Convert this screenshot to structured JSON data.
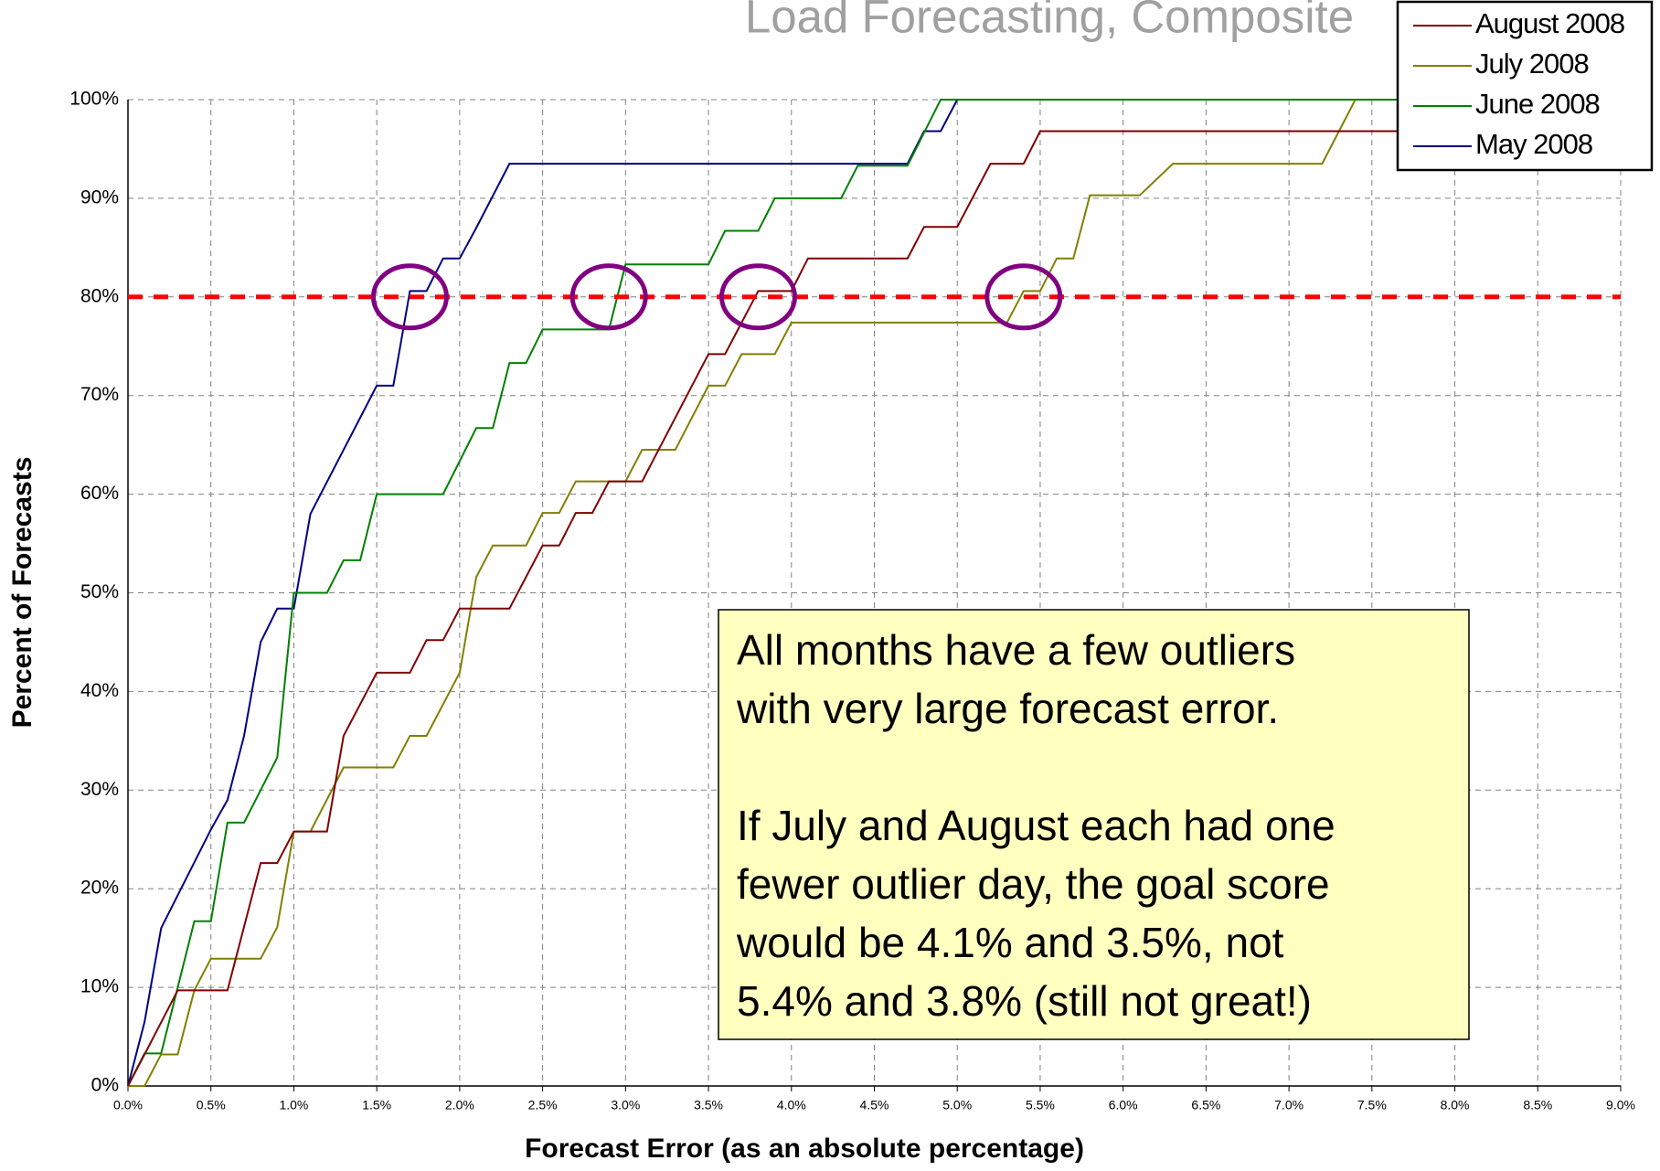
{
  "chart_data": {
    "type": "line",
    "title": "Load Forecasting, Composite",
    "x_label": "Forecast Error (as an absolute percentage)",
    "y_label": "Percent of Forecasts",
    "xlim": [
      0,
      9
    ],
    "ylim": [
      0,
      100
    ],
    "xticks": [
      {
        "value": 0,
        "label": "0.0%"
      },
      {
        "value": 0.5,
        "label": "0.5%"
      },
      {
        "value": 1,
        "label": "1.0%"
      },
      {
        "value": 1.5,
        "label": "1.5%"
      },
      {
        "value": 2,
        "label": "2.0%"
      },
      {
        "value": 2.5,
        "label": "2.5%"
      },
      {
        "value": 3,
        "label": "3.0%"
      },
      {
        "value": 3.5,
        "label": "3.5%"
      },
      {
        "value": 4,
        "label": "4.0%"
      },
      {
        "value": 4.5,
        "label": "4.5%"
      },
      {
        "value": 5,
        "label": "5.0%"
      },
      {
        "value": 5.5,
        "label": "5.5%"
      },
      {
        "value": 6,
        "label": "6.0%"
      },
      {
        "value": 6.5,
        "label": "6.5%"
      },
      {
        "value": 7,
        "label": "7.0%"
      },
      {
        "value": 7.5,
        "label": "7.5%"
      },
      {
        "value": 8,
        "label": "8.0%"
      },
      {
        "value": 8.5,
        "label": "8.5%"
      },
      {
        "value": 9,
        "label": "9.0%"
      }
    ],
    "yticks": [
      {
        "value": 0,
        "label": "0%"
      },
      {
        "value": 10,
        "label": "10%"
      },
      {
        "value": 20,
        "label": "20%"
      },
      {
        "value": 30,
        "label": "30%"
      },
      {
        "value": 40,
        "label": "40%"
      },
      {
        "value": 50,
        "label": "50%"
      },
      {
        "value": 60,
        "label": "60%"
      },
      {
        "value": 70,
        "label": "70%"
      },
      {
        "value": 80,
        "label": "80%"
      },
      {
        "value": 90,
        "label": "90%"
      },
      {
        "value": 100,
        "label": "100%"
      }
    ],
    "grid": true,
    "legend": "upper right",
    "target_line": {
      "value": 80,
      "color": "#ff0000"
    },
    "highlights": {
      "color": "#800080",
      "x": [
        1.7,
        2.9,
        3.8,
        5.4
      ],
      "y": [
        80,
        80,
        80,
        80
      ]
    },
    "annotation": [
      "All months have a few outliers",
      "with very large forecast error.",
      "",
      "If July and August each had one",
      "fewer outlier day, the goal score",
      "would be 4.1% and 3.5%, not",
      "5.4% and 3.8% (still not great!)"
    ],
    "series": [
      {
        "name": "August 2008",
        "color": "#800000",
        "x": [
          0,
          0.1,
          0.3,
          0.6,
          0.8,
          0.9,
          1.0,
          1.2,
          1.3,
          1.5,
          1.7,
          1.8,
          1.9,
          2.0,
          2.3,
          2.5,
          2.6,
          2.7,
          2.8,
          2.9,
          3.1,
          3.5,
          3.6,
          3.8,
          4.0,
          4.1,
          4.7,
          4.8,
          5.0,
          5.2,
          5.4,
          5.5,
          7.9
        ],
        "values": [
          0,
          3.2,
          9.7,
          9.7,
          22.6,
          22.6,
          25.8,
          25.8,
          35.5,
          41.9,
          41.9,
          45.2,
          45.2,
          48.4,
          48.4,
          54.8,
          54.8,
          58.1,
          58.1,
          61.3,
          61.3,
          74.2,
          74.2,
          80.6,
          80.6,
          83.9,
          83.9,
          87.1,
          87.1,
          93.5,
          93.5,
          96.8,
          96.8
        ]
      },
      {
        "name": "July 2008",
        "color": "#808000",
        "x": [
          0,
          0.1,
          0.2,
          0.3,
          0.4,
          0.5,
          0.8,
          0.9,
          1.0,
          1.1,
          1.3,
          1.6,
          1.7,
          1.8,
          2.0,
          2.1,
          2.2,
          2.4,
          2.5,
          2.6,
          2.7,
          3.0,
          3.1,
          3.3,
          3.5,
          3.6,
          3.7,
          3.9,
          4.0,
          5.3,
          5.4,
          5.5,
          5.6,
          5.7,
          5.8,
          6.1,
          6.3,
          7.2,
          7.4
        ],
        "values": [
          0,
          0,
          3.2,
          3.2,
          9.7,
          12.9,
          12.9,
          16.1,
          25.8,
          25.8,
          32.3,
          32.3,
          35.5,
          35.5,
          41.9,
          51.6,
          54.8,
          54.8,
          58.1,
          58.1,
          61.3,
          61.3,
          64.5,
          64.5,
          71,
          71,
          74.2,
          74.2,
          77.4,
          77.4,
          80.6,
          80.6,
          83.9,
          83.9,
          90.3,
          90.3,
          93.5,
          93.5,
          100
        ]
      },
      {
        "name": "June 2008",
        "color": "#008000",
        "x": [
          0,
          0.1,
          0.2,
          0.4,
          0.5,
          0.6,
          0.7,
          0.9,
          1.0,
          1.2,
          1.3,
          1.4,
          1.5,
          1.9,
          2.1,
          2.2,
          2.3,
          2.4,
          2.5,
          2.9,
          3.0,
          3.5,
          3.6,
          3.8,
          3.9,
          4.3,
          4.4,
          4.7,
          4.9,
          8.0
        ],
        "values": [
          0,
          3.3,
          3.3,
          16.7,
          16.7,
          26.7,
          26.7,
          33.3,
          50,
          50,
          53.3,
          53.3,
          60,
          60,
          66.7,
          66.7,
          73.3,
          73.3,
          76.7,
          76.7,
          83.3,
          83.3,
          86.7,
          86.7,
          90,
          90,
          93.3,
          93.3,
          100,
          100
        ]
      },
      {
        "name": "May 2008",
        "color": "#000080",
        "x": [
          0,
          0.1,
          0.2,
          0.5,
          0.6,
          0.7,
          0.8,
          0.9,
          1.0,
          1.1,
          1.3,
          1.5,
          1.6,
          1.7,
          1.8,
          1.9,
          2.0,
          2.1,
          2.3,
          4.7,
          4.8,
          4.9,
          5.0,
          8.0
        ],
        "values": [
          0,
          6.5,
          16,
          26,
          29,
          35.5,
          45,
          48.4,
          48.4,
          58,
          64.5,
          71,
          71,
          80.6,
          80.6,
          83.9,
          83.9,
          87,
          93.5,
          93.5,
          96.8,
          96.8,
          100,
          100
        ]
      }
    ]
  }
}
